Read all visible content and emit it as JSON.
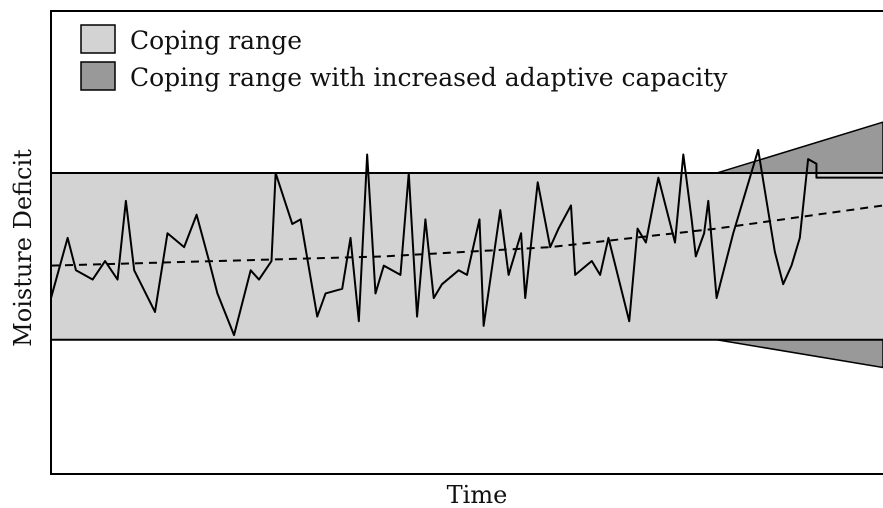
{
  "chart_data": {
    "type": "line",
    "title": "",
    "xlabel": "Time",
    "ylabel": "Moisture Deficit",
    "xlim": [
      0,
      1
    ],
    "ylim": [
      0,
      1
    ],
    "grid": false,
    "legend": {
      "placement": "top-left",
      "entries": [
        {
          "label": "Coping range",
          "color": "#d3d3d3"
        },
        {
          "label": "Coping range with increased adaptive capacity",
          "color": "#999999"
        }
      ]
    },
    "bands": [
      {
        "name": "Coping range",
        "color": "#d3d3d3",
        "x": [
          0,
          1
        ],
        "lower": [
          0.29,
          0.29
        ],
        "upper": [
          0.65,
          0.65
        ]
      },
      {
        "name": "Coping range with increased adaptive capacity",
        "color": "#999999",
        "x": [
          0.8,
          1
        ],
        "lower": [
          0.29,
          0.23
        ],
        "upper": [
          0.65,
          0.76
        ]
      }
    ],
    "series": [
      {
        "style": "solid",
        "x": [
          0,
          0.02,
          0.03,
          0.05,
          0.065,
          0.08,
          0.09,
          0.1,
          0.125,
          0.14,
          0.16,
          0.175,
          0.19,
          0.2,
          0.22,
          0.24,
          0.25,
          0.265,
          0.27,
          0.29,
          0.3,
          0.32,
          0.33,
          0.35,
          0.36,
          0.37,
          0.38,
          0.39,
          0.4,
          0.42,
          0.43,
          0.44,
          0.45,
          0.46,
          0.47,
          0.49,
          0.5,
          0.515,
          0.52,
          0.54,
          0.55,
          0.565,
          0.57,
          0.585,
          0.6,
          0.61,
          0.625,
          0.63,
          0.65,
          0.66,
          0.67,
          0.695,
          0.705,
          0.715,
          0.73,
          0.75,
          0.76,
          0.77,
          0.775,
          0.785,
          0.79,
          0.8,
          0.82,
          0.83,
          0.85,
          0.87,
          0.88,
          0.89,
          0.9,
          0.91,
          0.92,
          0.92,
          0.93,
          0.95,
          0.96,
          0.97,
          0.98,
          0.99,
          1.0
        ],
        "y": [
          0.38,
          0.51,
          0.44,
          0.42,
          0.46,
          0.42,
          0.59,
          0.44,
          0.35,
          0.52,
          0.49,
          0.56,
          0.46,
          0.39,
          0.3,
          0.44,
          0.42,
          0.46,
          0.65,
          0.54,
          0.55,
          0.34,
          0.39,
          0.4,
          0.51,
          0.33,
          0.69,
          0.39,
          0.45,
          0.43,
          0.65,
          0.34,
          0.55,
          0.38,
          0.41,
          0.44,
          0.43,
          0.55,
          0.32,
          0.57,
          0.43,
          0.52,
          0.38,
          0.63,
          0.49,
          0.53,
          0.58,
          0.43,
          0.46,
          0.43,
          0.51,
          0.33,
          0.53,
          0.5,
          0.64,
          0.5,
          0.69,
          0.55,
          0.47,
          0.52,
          0.59,
          0.38,
          0.52,
          0.58,
          0.7,
          0.48,
          0.41,
          0.45,
          0.51,
          0.68,
          0.67,
          0.64,
          0.64,
          0.64,
          0.64,
          0.64,
          0.64,
          0.64,
          0.64
        ]
      },
      {
        "style": "dashed",
        "x": [
          0,
          0.2,
          0.4,
          0.6,
          0.8,
          1.0
        ],
        "y": [
          0.45,
          0.46,
          0.47,
          0.49,
          0.53,
          0.58
        ]
      }
    ]
  }
}
